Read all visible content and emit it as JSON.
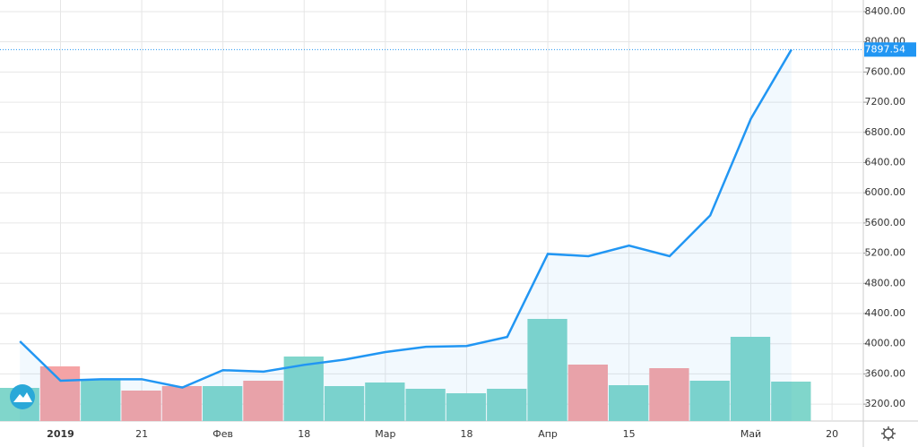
{
  "chart_data": {
    "type": "line",
    "x": [
      0,
      1,
      2,
      3,
      4,
      5,
      6,
      7,
      8,
      9,
      10,
      11,
      12,
      13,
      14,
      15,
      16,
      17,
      18,
      19
    ],
    "xlim": [
      -0.49,
      20.77
    ],
    "xticks": [
      {
        "value": 1,
        "label": "2019"
      },
      {
        "value": 3,
        "label": "21"
      },
      {
        "value": 5,
        "label": "Фев"
      },
      {
        "value": 7,
        "label": "18"
      },
      {
        "value": 9,
        "label": "Мар"
      },
      {
        "value": 11,
        "label": "18"
      },
      {
        "value": 13,
        "label": "Апр"
      },
      {
        "value": 15,
        "label": "15"
      },
      {
        "value": 18,
        "label": "Май"
      },
      {
        "value": 20,
        "label": "20"
      }
    ],
    "ylim": [
      2976,
      8554
    ],
    "yticks": [
      {
        "value": 3200,
        "label": "3200.00"
      },
      {
        "value": 3600,
        "label": "3600.00"
      },
      {
        "value": 4000,
        "label": "4000.00"
      },
      {
        "value": 4400,
        "label": "4400.00"
      },
      {
        "value": 4800,
        "label": "4800.00"
      },
      {
        "value": 5200,
        "label": "5200.00"
      },
      {
        "value": 5600,
        "label": "5600.00"
      },
      {
        "value": 6000,
        "label": "6000.00"
      },
      {
        "value": 6400,
        "label": "6400.00"
      },
      {
        "value": 6800,
        "label": "6800.00"
      },
      {
        "value": 7200,
        "label": "7200.00"
      },
      {
        "value": 7600,
        "label": "7600.00"
      },
      {
        "value": 8000,
        "label": "8000.00"
      },
      {
        "value": 8400,
        "label": "8400.00"
      }
    ],
    "grid": true,
    "series": [
      {
        "color": "#2196f3",
        "values": [
          4032,
          3510,
          3530,
          3530,
          3420,
          3650,
          3630,
          3720,
          3790,
          3890,
          3960,
          3970,
          4090,
          5190,
          5160,
          5300,
          5160,
          5700,
          6980,
          7897.54
        ]
      }
    ],
    "volume": {
      "values": [
        37,
        61,
        46,
        34,
        39,
        39,
        45,
        72,
        39,
        43,
        36,
        31,
        36,
        114,
        63,
        40,
        59,
        45,
        94,
        44
      ],
      "colors": [
        "#80d6cb",
        "#f5a3a5",
        "#80d6cb",
        "#f5a3a5",
        "#f5a3a5",
        "#80d6cb",
        "#f5a3a5",
        "#80d6cb",
        "#80d6cb",
        "#80d6cb",
        "#80d6cb",
        "#80d6cb",
        "#80d6cb",
        "#80d6cb",
        "#f5a3a5",
        "#80d6cb",
        "#f5a3a5",
        "#80d6cb",
        "#80d6cb",
        "#80d6cb"
      ]
    }
  }
}
